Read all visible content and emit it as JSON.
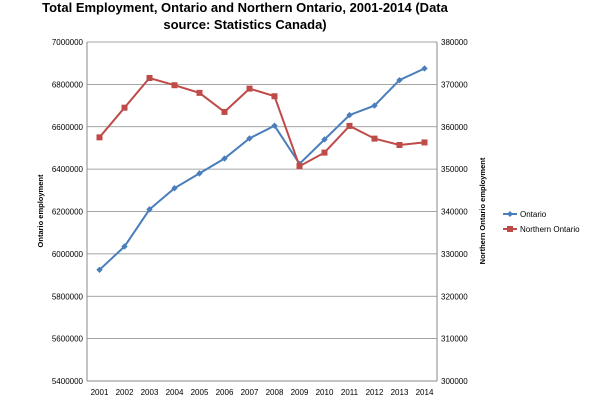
{
  "chart_data": {
    "type": "line",
    "title_line1": "Total Employment, Ontario and Northern Ontario, 2001-2014 (Data",
    "title_line2": "source: Statistics Canada)",
    "ylabel_left": "Ontario employment",
    "ylabel_right": "Northern Ontario employment",
    "x": [
      "2001",
      "2002",
      "2003",
      "2004",
      "2005",
      "2006",
      "2007",
      "2008",
      "2009",
      "2010",
      "2011",
      "2012",
      "2013",
      "2014"
    ],
    "ylim_left": [
      5400000,
      7000000
    ],
    "ylim_right": [
      300000,
      380000
    ],
    "yticks_left": [
      "5400000",
      "5600000",
      "5800000",
      "6000000",
      "6200000",
      "6400000",
      "6600000",
      "6800000",
      "7000000"
    ],
    "yticks_right": [
      "300000",
      "310000",
      "320000",
      "330000",
      "340000",
      "350000",
      "360000",
      "370000",
      "380000"
    ],
    "grid": true,
    "legend_position": "right",
    "series": [
      {
        "name": "Ontario",
        "axis": "left",
        "color": "#4a7ebb",
        "marker": "diamond",
        "values": [
          5925000,
          6035000,
          6210000,
          6310000,
          6380000,
          6450000,
          6545000,
          6605000,
          6425000,
          6540000,
          6655000,
          6700000,
          6820000,
          6875000
        ]
      },
      {
        "name": "Northern Ontario",
        "axis": "right",
        "color": "#be4b48",
        "marker": "square",
        "values": [
          357500,
          364500,
          371500,
          369800,
          368000,
          363500,
          369000,
          367200,
          350700,
          353900,
          360200,
          357200,
          355700,
          356300
        ]
      }
    ]
  }
}
